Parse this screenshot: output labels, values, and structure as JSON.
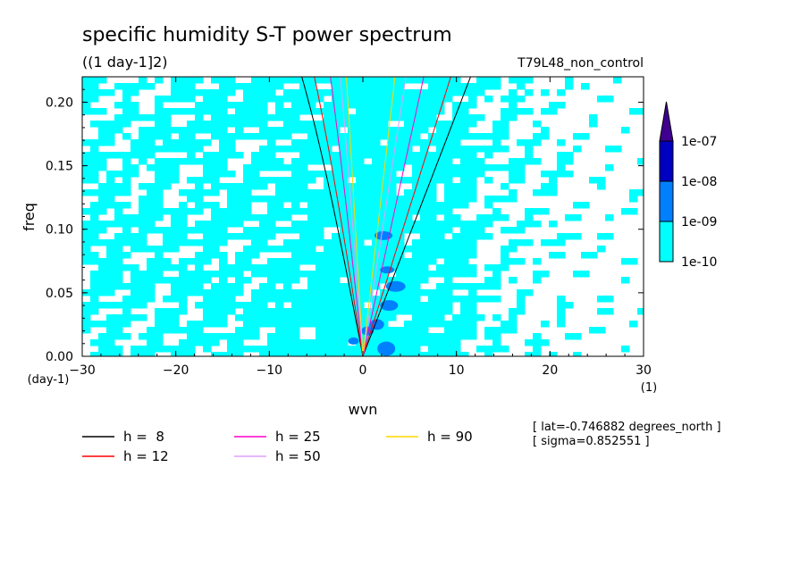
{
  "chart_data": {
    "type": "heatmap",
    "title": "specific humidity S-T power spectrum",
    "subtitle": "((1 day-1]2)",
    "run_label": "T79L48_non_control",
    "xlabel": "wvn",
    "ylabel": "freq",
    "x_unit": "(1)",
    "y_unit": "(day-1)",
    "xlim": [
      -30,
      30
    ],
    "ylim": [
      0,
      0.22
    ],
    "x_ticks": [
      "-30",
      "-20",
      "-10",
      "0",
      "10",
      "20",
      "30"
    ],
    "y_ticks": [
      "0.00",
      "0.05",
      "0.10",
      "0.15",
      "0.20"
    ],
    "colorbar": {
      "levels": [
        "1e-10",
        "1e-09",
        "1e-08",
        "1e-07"
      ],
      "colors": [
        "#00ffff",
        "#0080ff",
        "#0000c0",
        "#400090"
      ]
    },
    "dispersion_curves": [
      {
        "label": "h =  8",
        "h": 8,
        "color": "#000000"
      },
      {
        "label": "h = 12",
        "h": 12,
        "color": "#ff0000"
      },
      {
        "label": "h = 25",
        "h": 25,
        "color": "#ff00c8"
      },
      {
        "label": "h = 50",
        "h": 50,
        "color": "#e0a0ff"
      },
      {
        "label": "h = 90",
        "h": 90,
        "color": "#ffd700"
      }
    ],
    "annotations": [
      "[ lat=-0.746882 degrees_north ]",
      "[ sigma=0.852551 ]"
    ]
  }
}
